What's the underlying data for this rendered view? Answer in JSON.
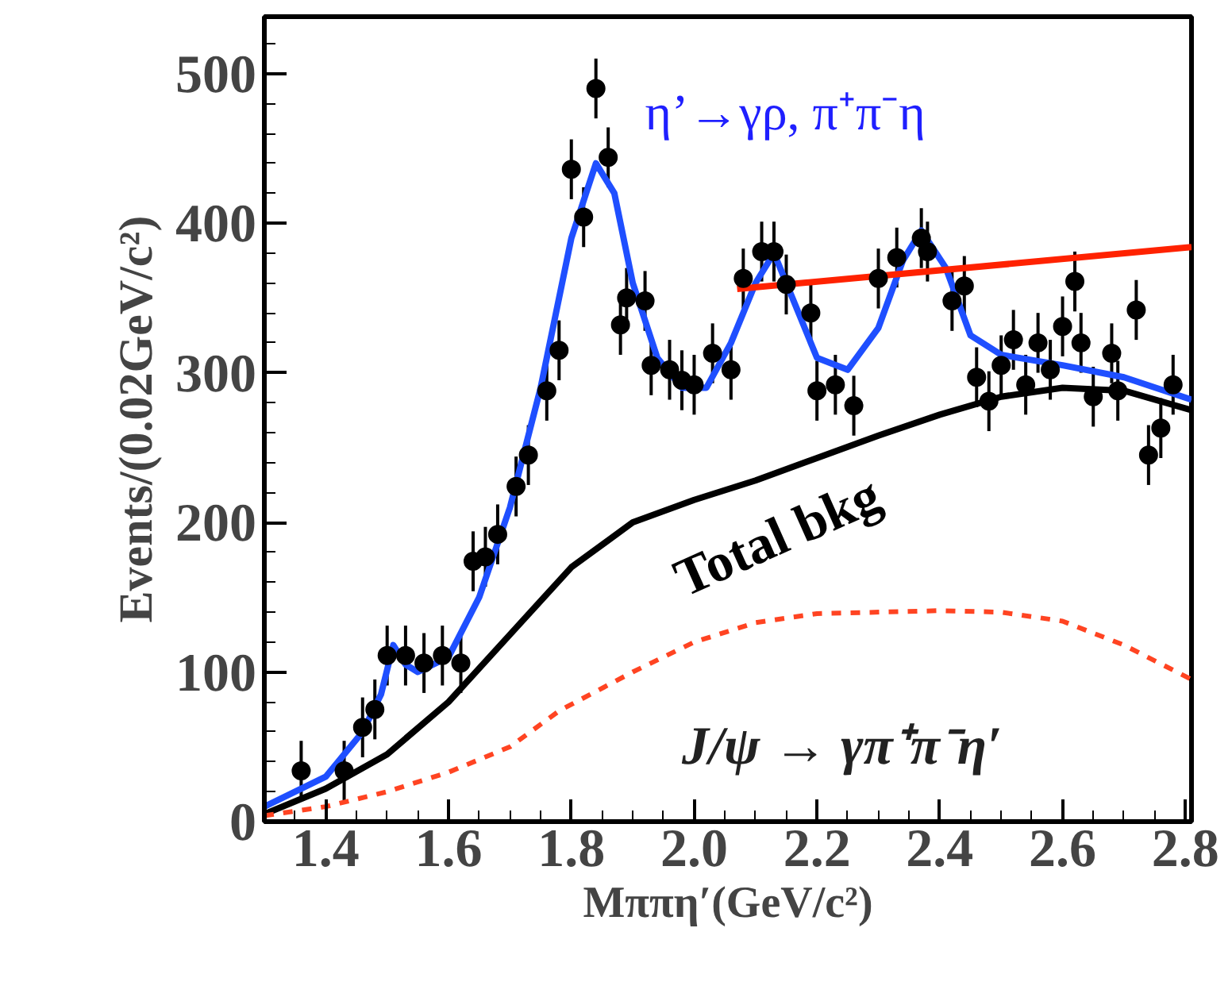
{
  "chart_data": {
    "type": "scatter",
    "xlabel": "Mππη′(GeV/c²)",
    "ylabel": "Events/(0.02GeV/c²)",
    "annotations": [
      "η’→γρ, π⁺π⁻η",
      "J/ψ → γπ⁺π⁻η′"
    ],
    "xlim": [
      1.3,
      2.81
    ],
    "ylim": [
      0,
      538
    ],
    "xticks": [
      1.4,
      1.6,
      1.8,
      {
        "value": 2.0,
        "label": "2.0"
      },
      2.2,
      2.4,
      2.6,
      2.8
    ],
    "yticks": [
      0,
      100,
      200,
      300,
      400,
      500
    ],
    "grid": false,
    "series": [
      {
        "marker": "circle",
        "color": "#000000",
        "x": [
          1.36,
          1.43,
          1.46,
          1.48,
          1.5,
          1.53,
          1.56,
          1.59,
          1.62,
          1.64,
          1.66,
          1.68,
          1.71,
          1.73,
          1.76,
          1.78,
          1.8,
          1.82,
          1.84,
          1.86,
          1.88,
          1.89,
          1.92,
          1.93,
          1.96,
          1.98,
          2.0,
          2.03,
          2.06,
          2.08,
          2.11,
          2.13,
          2.15,
          2.19,
          2.2,
          2.23,
          2.26,
          2.3,
          2.33,
          2.37,
          2.38,
          2.42,
          2.44,
          2.46,
          2.48,
          2.5,
          2.52,
          2.54,
          2.56,
          2.58,
          2.6,
          2.62,
          2.63,
          2.65,
          2.68,
          2.69,
          2.72,
          2.74,
          2.76,
          2.78
        ],
        "values": [
          34,
          34,
          63,
          75,
          111,
          111,
          106,
          111,
          106,
          174,
          177,
          192,
          224,
          245,
          288,
          315,
          436,
          404,
          490,
          444,
          332,
          350,
          348,
          305,
          302,
          295,
          292,
          313,
          302,
          363,
          381,
          381,
          359,
          340,
          288,
          292,
          278,
          363,
          377,
          390,
          381,
          348,
          358,
          297,
          281,
          305,
          322,
          292,
          320,
          302,
          331,
          361,
          320,
          284,
          313,
          288,
          342,
          245,
          263,
          292
        ],
        "errors": [
          20,
          20,
          20,
          20,
          20,
          20,
          20,
          20,
          20,
          20,
          20,
          20,
          20,
          20,
          20,
          20,
          20,
          20,
          20,
          20,
          20,
          20,
          20,
          20,
          20,
          20,
          20,
          20,
          20,
          20,
          20,
          20,
          20,
          20,
          20,
          20,
          20,
          20,
          20,
          20,
          20,
          20,
          20,
          20,
          20,
          20,
          20,
          20,
          20,
          20,
          20,
          20,
          20,
          20,
          20,
          20,
          20,
          20,
          20,
          20
        ]
      },
      {
        "type": "line",
        "color": "#1f4fff",
        "line_style": "solid",
        "x": [
          1.3,
          1.4,
          1.46,
          1.49,
          1.51,
          1.53,
          1.55,
          1.6,
          1.65,
          1.7,
          1.75,
          1.8,
          1.84,
          1.87,
          1.9,
          1.94,
          1.98,
          2.02,
          2.06,
          2.1,
          2.13,
          2.16,
          2.2,
          2.25,
          2.3,
          2.34,
          2.37,
          2.41,
          2.45,
          2.5,
          2.6,
          2.7,
          2.81
        ],
        "values": [
          10,
          30,
          60,
          85,
          118,
          105,
          100,
          110,
          150,
          210,
          290,
          390,
          440,
          420,
          360,
          310,
          290,
          290,
          320,
          360,
          380,
          350,
          310,
          302,
          330,
          375,
          395,
          370,
          325,
          312,
          305,
          297,
          282
        ]
      },
      {
        "type": "line",
        "name": "Total bkg",
        "color": "#000000",
        "line_style": "solid",
        "x": [
          1.3,
          1.4,
          1.5,
          1.6,
          1.7,
          1.8,
          1.9,
          2.0,
          2.1,
          2.2,
          2.3,
          2.4,
          2.5,
          2.6,
          2.7,
          2.81
        ],
        "values": [
          5,
          22,
          45,
          80,
          125,
          170,
          200,
          215,
          228,
          243,
          258,
          272,
          284,
          290,
          288,
          275
        ]
      },
      {
        "type": "line",
        "color": "#ff4422",
        "line_style": "dashed",
        "x": [
          1.3,
          1.4,
          1.5,
          1.6,
          1.7,
          1.78,
          1.9,
          2.0,
          2.1,
          2.2,
          2.4,
          2.5,
          2.6,
          2.7,
          2.81
        ],
        "values": [
          4,
          10,
          20,
          33,
          50,
          74,
          100,
          120,
          133,
          139,
          141,
          140,
          134,
          118,
          95
        ]
      },
      {
        "type": "line",
        "color": "#ff2200",
        "line_style": "solid",
        "x": [
          2.07,
          2.81
        ],
        "values": [
          356,
          384
        ]
      }
    ]
  }
}
